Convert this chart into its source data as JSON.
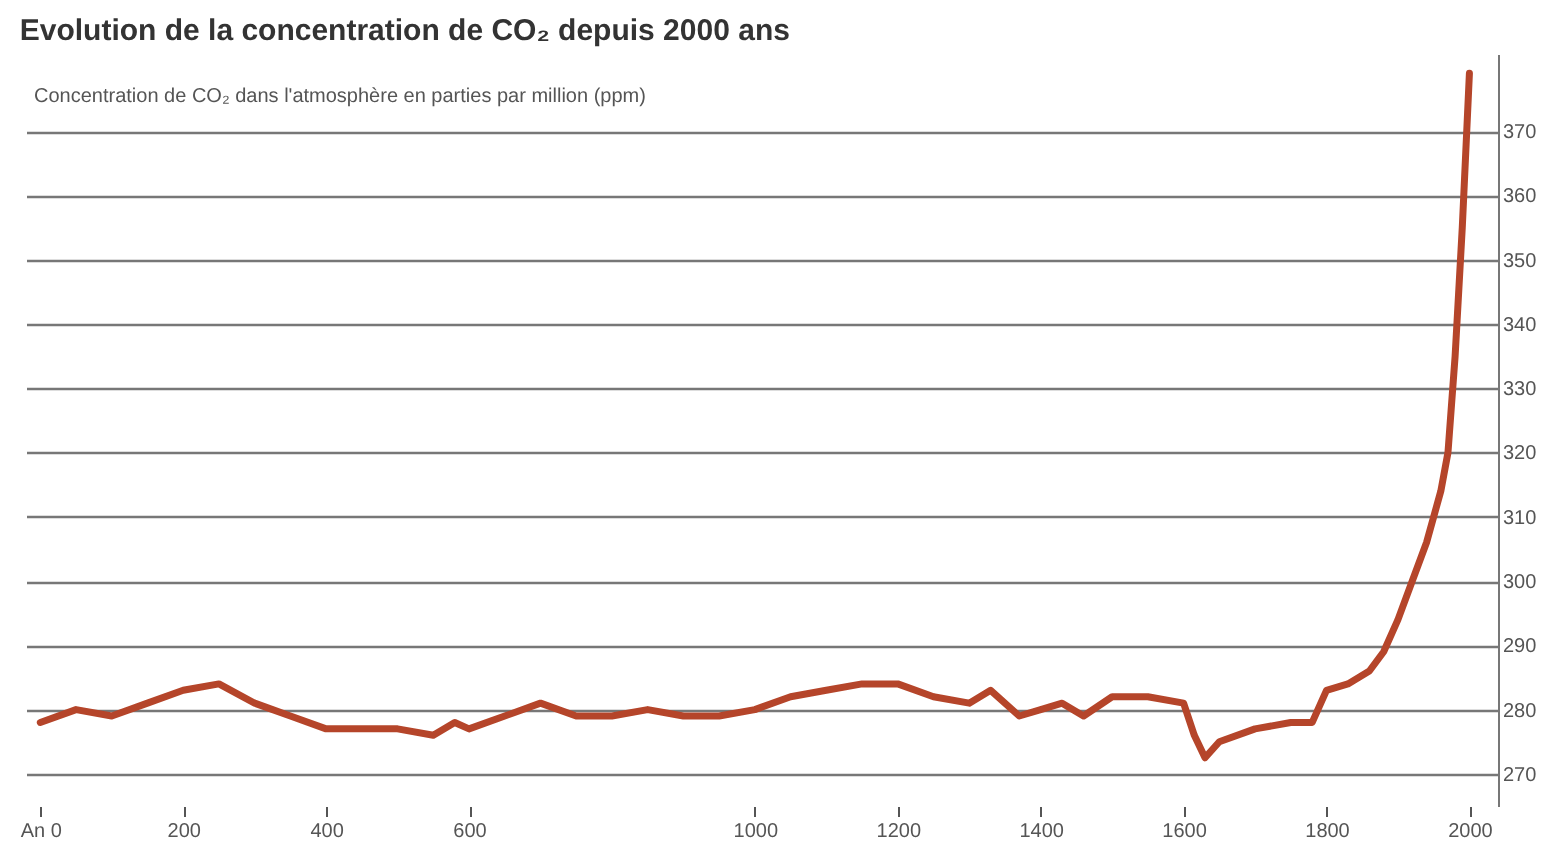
{
  "chart_data": {
    "type": "line",
    "title": "Evolution de la concentration de CO₂ depuis 2000 ans",
    "annotations": [
      "Concentration de CO₂ dans l'atmosphère en parties par million (ppm)"
    ],
    "x": [
      0,
      50,
      100,
      150,
      200,
      250,
      300,
      350,
      400,
      450,
      500,
      550,
      580,
      600,
      650,
      700,
      750,
      800,
      850,
      900,
      950,
      1000,
      1050,
      1100,
      1150,
      1200,
      1250,
      1300,
      1330,
      1370,
      1400,
      1430,
      1460,
      1500,
      1550,
      1600,
      1615,
      1630,
      1650,
      1700,
      1750,
      1780,
      1800,
      1830,
      1860,
      1880,
      1900,
      1920,
      1940,
      1960,
      1970,
      1980,
      1990,
      2000
    ],
    "series": [
      {
        "color": "#b5452a",
        "values": [
          278,
          280,
          279,
          281,
          283,
          284,
          281,
          279,
          277,
          277,
          277,
          276,
          278,
          277,
          279,
          281,
          279,
          279,
          280,
          279,
          279,
          280,
          282,
          283,
          284,
          284,
          282,
          281,
          283,
          279,
          280,
          281,
          279,
          282,
          282,
          281,
          276,
          272.5,
          275,
          277,
          278,
          278,
          283,
          284,
          286,
          289,
          294,
          300,
          306,
          314,
          320,
          335,
          355,
          379
        ]
      }
    ],
    "xlim": [
      -20,
      2040
    ],
    "ylim": [
      265,
      382
    ],
    "xticks": [
      {
        "value": 0,
        "label": "An 0"
      },
      200,
      400,
      600,
      1000,
      1200,
      1400,
      1600,
      1800,
      2000
    ],
    "yticks": [
      270,
      280,
      290,
      300,
      310,
      320,
      330,
      340,
      350,
      360,
      370
    ],
    "grid": "y",
    "line_style": "solid",
    "marker": "none"
  }
}
